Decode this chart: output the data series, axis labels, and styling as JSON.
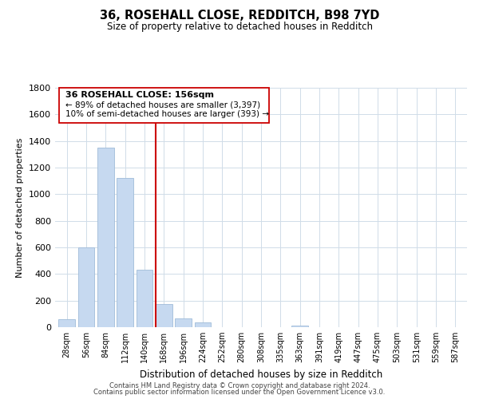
{
  "title": "36, ROSEHALL CLOSE, REDDITCH, B98 7YD",
  "subtitle": "Size of property relative to detached houses in Redditch",
  "xlabel": "Distribution of detached houses by size in Redditch",
  "ylabel": "Number of detached properties",
  "bar_color": "#c6d9f0",
  "bar_edge_color": "#a0bcd8",
  "categories": [
    "28sqm",
    "56sqm",
    "84sqm",
    "112sqm",
    "140sqm",
    "168sqm",
    "196sqm",
    "224sqm",
    "252sqm",
    "280sqm",
    "308sqm",
    "335sqm",
    "363sqm",
    "391sqm",
    "419sqm",
    "447sqm",
    "475sqm",
    "503sqm",
    "531sqm",
    "559sqm",
    "587sqm"
  ],
  "values": [
    60,
    600,
    1350,
    1120,
    430,
    175,
    65,
    35,
    0,
    0,
    0,
    0,
    10,
    0,
    0,
    0,
    0,
    0,
    0,
    0,
    0
  ],
  "ylim": [
    0,
    1800
  ],
  "yticks": [
    0,
    200,
    400,
    600,
    800,
    1000,
    1200,
    1400,
    1600,
    1800
  ],
  "vline_x": 4.57,
  "vline_color": "#cc0000",
  "annotation_title": "36 ROSEHALL CLOSE: 156sqm",
  "annotation_line1": "← 89% of detached houses are smaller (3,397)",
  "annotation_line2": "10% of semi-detached houses are larger (393) →",
  "footer_line1": "Contains HM Land Registry data © Crown copyright and database right 2024.",
  "footer_line2": "Contains public sector information licensed under the Open Government Licence v3.0.",
  "background_color": "#ffffff",
  "grid_color": "#d0dce8"
}
